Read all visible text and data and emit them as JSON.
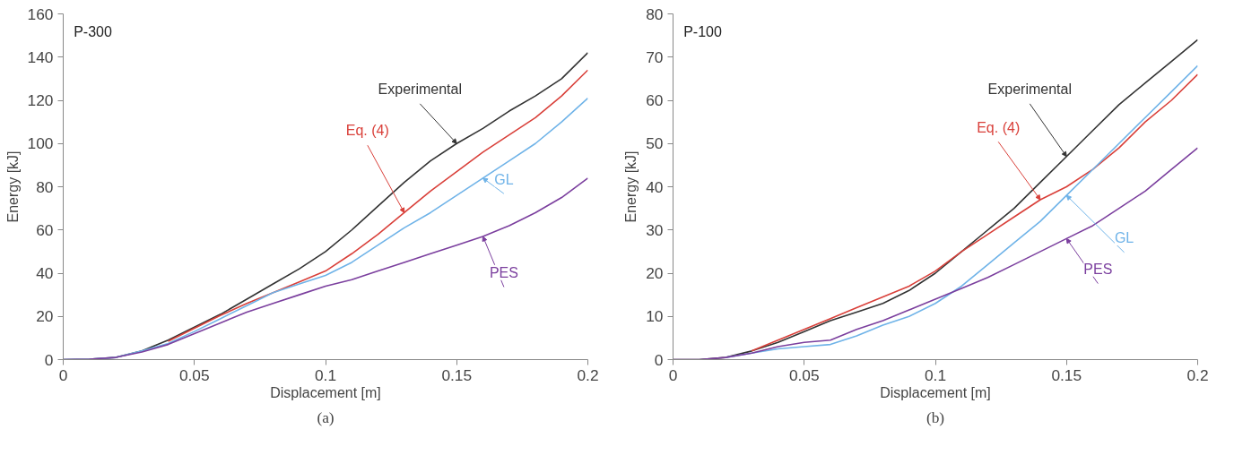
{
  "chart_data": [
    {
      "type": "line",
      "title": "P-300",
      "xlabel": "Displacement [m]",
      "ylabel": "Energy [kJ]",
      "annotations": [
        "(a)"
      ],
      "x": [
        0,
        0.01,
        0.02,
        0.03,
        0.04,
        0.05,
        0.06,
        0.07,
        0.08,
        0.09,
        0.1,
        0.11,
        0.12,
        0.13,
        0.14,
        0.15,
        0.16,
        0.17,
        0.18,
        0.19,
        0.2
      ],
      "xlim": [
        0,
        0.2
      ],
      "xticks": [
        0,
        0.05,
        0.1,
        0.15,
        0.2
      ],
      "ylim": [
        0,
        160
      ],
      "yticks": [
        0,
        20,
        40,
        60,
        80,
        100,
        120,
        140,
        160
      ],
      "grid": false,
      "legend": "right",
      "marker": "none",
      "line_style": "solid",
      "series": [
        {
          "name": "Experimental",
          "color": "#333333",
          "values": [
            0,
            0.2,
            1,
            4,
            9,
            15,
            21,
            28,
            35,
            42,
            50,
            60,
            71,
            82,
            92,
            100,
            107,
            115,
            122,
            130,
            142
          ]
        },
        {
          "name": "Eq. (4)",
          "color": "#d9403a",
          "values": [
            null,
            null,
            null,
            null,
            8.5,
            14.5,
            20.5,
            26,
            31,
            36,
            41,
            49,
            58,
            68,
            78,
            87,
            96,
            104,
            112,
            122,
            134
          ]
        },
        {
          "name": "GL",
          "color": "#6fb3e8",
          "values": [
            0,
            0.2,
            1,
            4,
            7.5,
            13,
            19,
            25,
            31,
            35,
            39,
            45,
            53,
            61,
            68,
            76,
            84,
            92,
            100,
            110,
            121
          ]
        },
        {
          "name": "PES",
          "color": "#7b3f9e",
          "values": [
            0,
            0.2,
            1,
            3.5,
            7,
            12,
            17,
            22,
            26,
            30,
            34,
            37,
            41,
            45,
            49,
            53,
            57,
            62,
            68,
            75,
            84
          ]
        }
      ]
    },
    {
      "type": "line",
      "title": "P-100",
      "xlabel": "Displacement [m]",
      "ylabel": "Energy [kJ]",
      "annotations": [
        "(b)"
      ],
      "x": [
        0,
        0.01,
        0.02,
        0.03,
        0.04,
        0.05,
        0.06,
        0.07,
        0.08,
        0.09,
        0.1,
        0.11,
        0.12,
        0.13,
        0.14,
        0.15,
        0.16,
        0.17,
        0.18,
        0.19,
        0.2
      ],
      "xlim": [
        0,
        0.2
      ],
      "xticks": [
        0,
        0.05,
        0.1,
        0.15,
        0.2
      ],
      "ylim": [
        0,
        80
      ],
      "yticks": [
        0,
        10,
        20,
        30,
        40,
        50,
        60,
        70,
        80
      ],
      "grid": false,
      "legend": "right",
      "marker": "none",
      "line_style": "solid",
      "series": [
        {
          "name": "Experimental",
          "color": "#333333",
          "values": [
            0,
            0,
            0.5,
            2,
            4,
            6.5,
            9,
            11,
            13,
            16,
            20,
            25,
            30,
            35,
            41,
            47,
            53,
            59,
            64,
            69,
            74
          ]
        },
        {
          "name": "Eq. (4)",
          "color": "#d9403a",
          "values": [
            null,
            null,
            null,
            2,
            4.5,
            7,
            9.5,
            12,
            14.5,
            17,
            20.5,
            25,
            29,
            33,
            37,
            40,
            44,
            49,
            55,
            60,
            66
          ]
        },
        {
          "name": "GL",
          "color": "#6fb3e8",
          "values": [
            null,
            null,
            0.5,
            1.5,
            2.5,
            3,
            3.5,
            5.5,
            8,
            10,
            13,
            17,
            22,
            27,
            32,
            38,
            44,
            50,
            56,
            62,
            68
          ]
        },
        {
          "name": "PES",
          "color": "#7b3f9e",
          "values": [
            0,
            0,
            0.5,
            1.5,
            3,
            4,
            4.5,
            7,
            9,
            11.5,
            14,
            16.5,
            19,
            22,
            25,
            28,
            31,
            35,
            39,
            44,
            49
          ]
        }
      ]
    }
  ]
}
